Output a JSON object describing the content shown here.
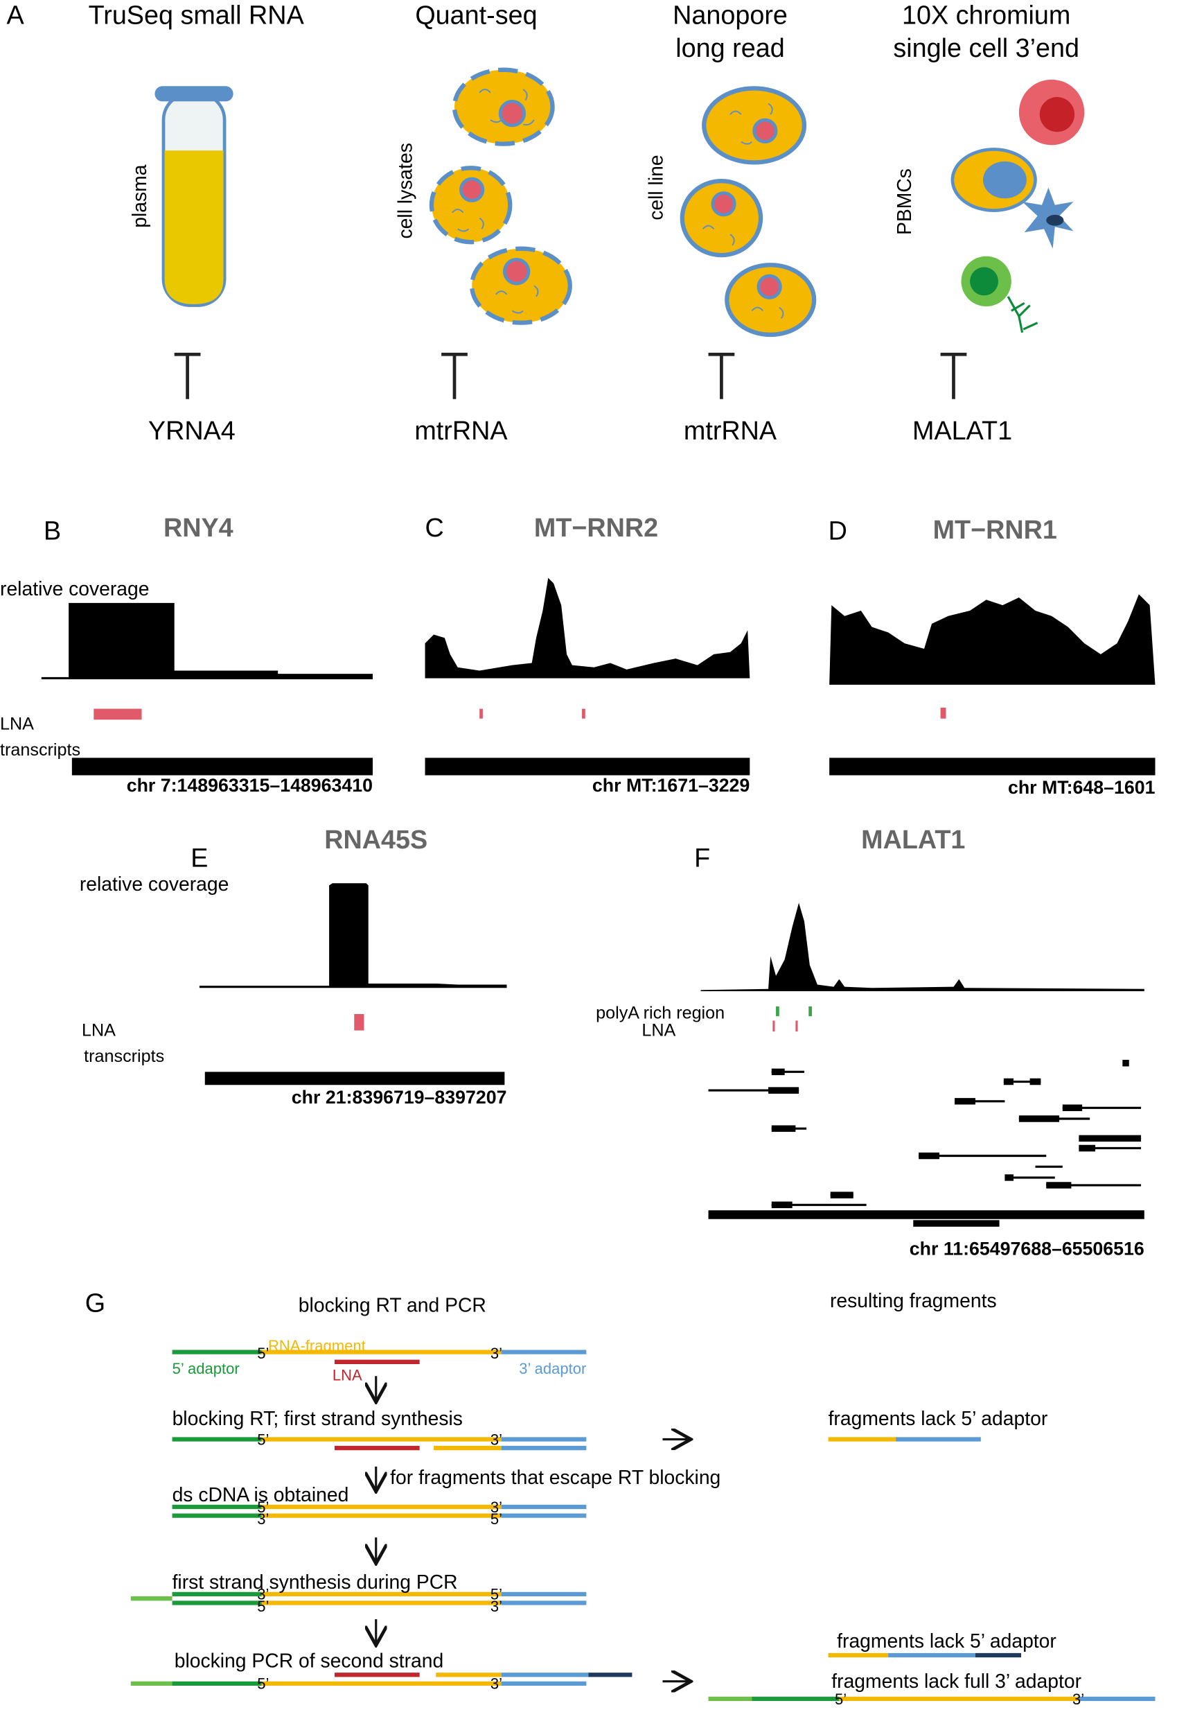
{
  "panel_a": {
    "label": "A",
    "columns": [
      {
        "title": [
          "TruSeq small RNA"
        ],
        "sample": "plasma",
        "target": "YRNA4"
      },
      {
        "title": [
          "Quant-seq"
        ],
        "sample": "cell lysates",
        "target": "mtrRNA"
      },
      {
        "title": [
          "Nanopore",
          "long read"
        ],
        "sample": "cell line",
        "target": "mtrRNA"
      },
      {
        "title": [
          "10X chromium",
          "single cell 3’end"
        ],
        "sample": "PBMCs",
        "target": "MALAT1"
      }
    ]
  },
  "panel_b": {
    "label": "B",
    "gene": "RNY4",
    "coverage_label": "relative coverage",
    "lna_label": "LNA",
    "transcripts_label": "transcripts",
    "region": "chr 7:148963315–148963410"
  },
  "panel_c": {
    "label": "C",
    "gene": "MT−RNR2",
    "region": "chr MT:1671–3229"
  },
  "panel_d": {
    "label": "D",
    "gene": "MT−RNR1",
    "region": "chr MT:648–1601"
  },
  "panel_e": {
    "label": "E",
    "gene": "RNA45S",
    "coverage_label": "relative coverage",
    "lna_label": "LNA",
    "transcripts_label": "transcripts",
    "region": "chr 21:8396719–8397207"
  },
  "panel_f": {
    "label": "F",
    "gene": "MALAT1",
    "polya_label": "polyA rich region",
    "lna_label": "LNA",
    "region": "chr 11:65497688–65506516"
  },
  "panel_g": {
    "label": "G",
    "left_title": "blocking RT and PCR",
    "right_title": "resulting fragments",
    "rna_fragment": "RNA-fragment",
    "adaptor_5": "5’ adaptor",
    "adaptor_3": "3’ adaptor",
    "lna": "LNA",
    "end_5": "5’",
    "end_3": "3’",
    "steps": [
      "blocking RT; first strand synthesis",
      "for fragments that escape RT blocking",
      "ds cDNA is obtained",
      "first strand synthesis during PCR",
      "blocking PCR of second strand"
    ],
    "results": [
      "fragments lack 5’ adaptor",
      "fragments lack 5’ adaptor",
      "fragments lack full 3’ adaptor"
    ]
  }
}
